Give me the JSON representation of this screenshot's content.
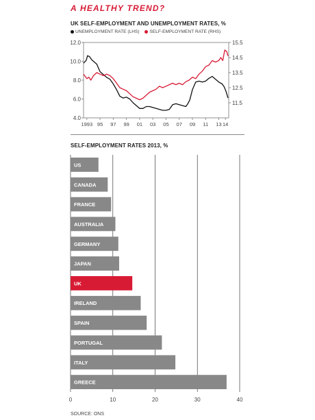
{
  "header": {
    "title": "A HEALTHY TREND?",
    "source": "SOURCE: ONS"
  },
  "chart_data": [
    {
      "type": "line",
      "title": "UK SELF-EMPLOYMENT AND UNEMPLOYMENT RATES, %",
      "x_tick_labels": [
        "1993",
        "95",
        "97",
        "99",
        "01",
        "03",
        "05",
        "07",
        "09",
        "11",
        "13",
        "14"
      ],
      "x_ticks": [
        1993,
        1995,
        1997,
        1999,
        2001,
        2003,
        2005,
        2007,
        2009,
        2011,
        2013,
        2014
      ],
      "xlim": [
        1992.5,
        2014.5
      ],
      "y_left": {
        "lim": [
          4.0,
          12.0
        ],
        "ticks": [
          "4.0",
          "6.0",
          "8.0",
          "10.0",
          "12.0"
        ]
      },
      "y_right": {
        "lim": [
          10.5,
          15.5
        ],
        "ticks": [
          "11.5",
          "12.5",
          "13.5",
          "14.5",
          "15.5"
        ]
      },
      "grid": false,
      "legend_position": "top",
      "series": [
        {
          "name": "UNEMPLOYMENT RATE (LHS)",
          "axis": "left",
          "color": "#111111",
          "x": [
            1992.5,
            1992.9,
            1993.1,
            1993.4,
            1993.7,
            1994.0,
            1994.5,
            1995.0,
            1995.5,
            1996.0,
            1996.5,
            1997.0,
            1997.5,
            1998.0,
            1998.5,
            1999.0,
            1999.5,
            2000.0,
            2000.5,
            2001.0,
            2001.5,
            2002.0,
            2002.5,
            2003.0,
            2003.5,
            2004.0,
            2004.5,
            2005.0,
            2005.5,
            2006.0,
            2006.5,
            2007.0,
            2007.5,
            2008.0,
            2008.3,
            2008.6,
            2009.0,
            2009.5,
            2010.0,
            2010.5,
            2011.0,
            2011.5,
            2012.0,
            2012.5,
            2013.0,
            2013.5,
            2013.8,
            2014.1,
            2014.4
          ],
          "y": [
            9.8,
            10.1,
            10.6,
            10.5,
            10.2,
            10.0,
            9.7,
            8.9,
            8.6,
            8.3,
            8.1,
            7.6,
            7.0,
            6.3,
            6.1,
            6.2,
            6.0,
            5.6,
            5.3,
            5.0,
            5.0,
            5.2,
            5.2,
            5.1,
            5.0,
            4.9,
            4.8,
            4.8,
            4.9,
            5.4,
            5.5,
            5.4,
            5.3,
            5.2,
            5.5,
            5.9,
            7.0,
            7.8,
            7.9,
            7.8,
            7.9,
            8.2,
            8.4,
            8.1,
            7.8,
            7.6,
            7.3,
            6.8,
            6.1
          ]
        },
        {
          "name": "SELF-EMPLOYMENT RATE (RHS)",
          "axis": "right",
          "color": "#d81b35",
          "x": [
            1992.5,
            1993.0,
            1993.3,
            1993.6,
            1994.0,
            1994.5,
            1995.0,
            1995.5,
            1996.0,
            1996.5,
            1997.0,
            1997.5,
            1998.0,
            1998.5,
            1999.0,
            1999.5,
            2000.0,
            2000.5,
            2001.0,
            2001.5,
            2002.0,
            2002.5,
            2003.0,
            2003.5,
            2004.0,
            2004.5,
            2005.0,
            2005.5,
            2006.0,
            2006.5,
            2007.0,
            2007.5,
            2008.0,
            2008.5,
            2009.0,
            2009.5,
            2010.0,
            2010.5,
            2011.0,
            2011.5,
            2012.0,
            2012.5,
            2013.0,
            2013.3,
            2013.6,
            2013.9,
            2014.2,
            2014.4
          ],
          "y": [
            13.4,
            13.1,
            13.2,
            13.0,
            13.3,
            13.5,
            13.4,
            13.3,
            13.4,
            13.3,
            13.1,
            12.8,
            12.5,
            12.4,
            12.3,
            12.1,
            11.9,
            11.8,
            11.7,
            11.8,
            12.0,
            12.2,
            12.3,
            12.4,
            12.6,
            12.5,
            12.6,
            12.7,
            12.8,
            12.7,
            12.8,
            12.7,
            12.9,
            13.0,
            13.2,
            13.1,
            13.4,
            13.6,
            13.9,
            14.0,
            14.3,
            14.2,
            14.3,
            14.5,
            14.3,
            15.0,
            14.9,
            14.6
          ]
        }
      ]
    },
    {
      "type": "bar",
      "orientation": "horizontal",
      "title": "SELF-EMPLOYMENT RATES 2013, %",
      "categories": [
        "US",
        "CANADA",
        "FRANCE",
        "AUSTRALIA",
        "GERMANY",
        "JAPAN",
        "UK",
        "IRELAND",
        "SPAIN",
        "PORTUGAL",
        "ITALY",
        "GREECE"
      ],
      "values": [
        6.6,
        8.8,
        9.6,
        10.6,
        11.3,
        11.5,
        14.6,
        16.6,
        18.0,
        21.6,
        24.8,
        36.9
      ],
      "bar_colors": [
        "#888888",
        "#888888",
        "#888888",
        "#888888",
        "#888888",
        "#888888",
        "#d81b35",
        "#888888",
        "#888888",
        "#888888",
        "#888888",
        "#888888"
      ],
      "xlim": [
        0,
        40
      ],
      "x_ticks": [
        "0",
        "10",
        "20",
        "30",
        "40"
      ],
      "grid": true
    }
  ]
}
